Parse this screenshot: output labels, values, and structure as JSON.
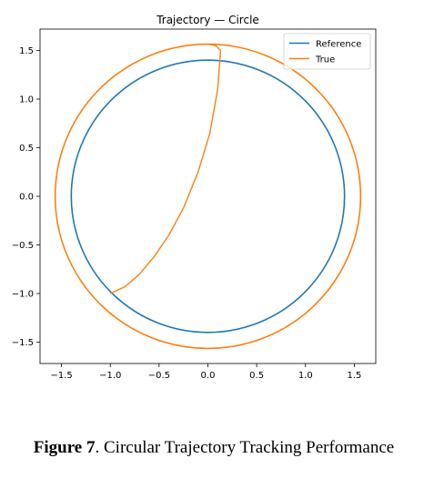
{
  "chart_data": {
    "type": "line",
    "title": "Trajectory — Circle",
    "xlabel": "",
    "ylabel": "",
    "xlim": [
      -1.72,
      1.72
    ],
    "ylim": [
      -1.72,
      1.72
    ],
    "xticks": [
      -1.5,
      -1.0,
      -0.5,
      0.0,
      0.5,
      1.0,
      1.5
    ],
    "xtick_labels": [
      "−1.5",
      "−1.0",
      "−0.5",
      "0.0",
      "0.5",
      "1.0",
      "1.5"
    ],
    "yticks": [
      -1.5,
      -1.0,
      -0.5,
      0.0,
      0.5,
      1.0,
      1.5
    ],
    "ytick_labels": [
      "−1.5",
      "−1.0",
      "−0.5",
      "0.0",
      "0.5",
      "1.0",
      "1.5"
    ],
    "grid": false,
    "legend_position": "top-right",
    "series": [
      {
        "name": "Reference",
        "color": "#1f77b4",
        "shape": "circle",
        "center": [
          0,
          0
        ],
        "radius": 1.4
      },
      {
        "name": "True",
        "color": "#ff7f0e",
        "shape": "circle-with-transient",
        "center": [
          0,
          0
        ],
        "radius": 1.565,
        "transient": [
          [
            -1.0,
            -1.0
          ],
          [
            -0.85,
            -0.93
          ],
          [
            -0.7,
            -0.8
          ],
          [
            -0.55,
            -0.62
          ],
          [
            -0.4,
            -0.4
          ],
          [
            -0.25,
            -0.12
          ],
          [
            -0.1,
            0.25
          ],
          [
            0.02,
            0.65
          ],
          [
            0.1,
            1.1
          ],
          [
            0.13,
            1.5
          ],
          [
            0.08,
            1.55
          ],
          [
            0.0,
            1.565
          ]
        ]
      }
    ]
  },
  "caption": {
    "label": "Figure 7",
    "text": ". Circular Trajectory Tracking Performance"
  }
}
